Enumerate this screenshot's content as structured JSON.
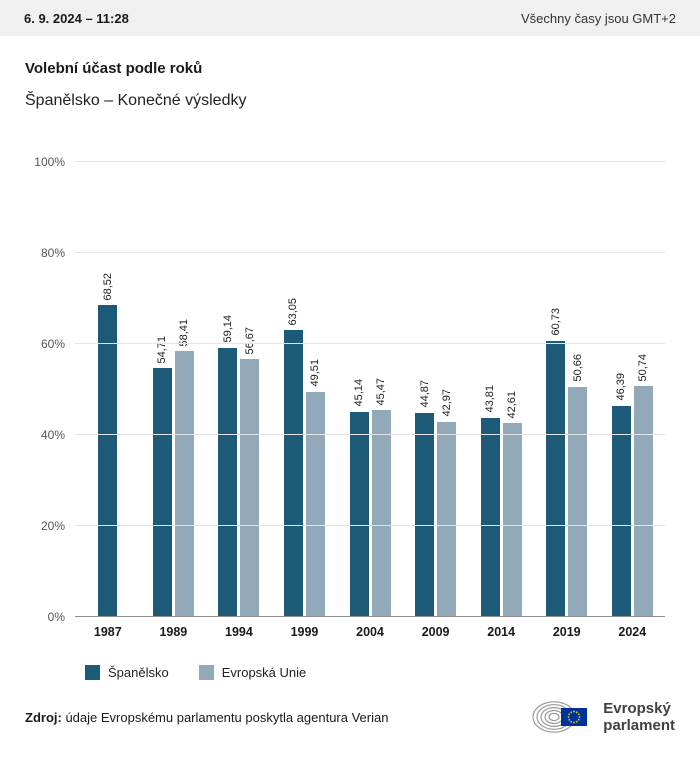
{
  "header": {
    "datetime": "6. 9. 2024 – 11:28",
    "timezone_note": "Všechny časy jsou GMT+2"
  },
  "title": "Volební účast podle roků",
  "subtitle": "Španělsko – Konečné výsledky",
  "chart_data": {
    "type": "bar",
    "categories": [
      "1987",
      "1989",
      "1994",
      "1999",
      "2004",
      "2009",
      "2014",
      "2019",
      "2024"
    ],
    "series": [
      {
        "name": "Španělsko",
        "color": "#1d5a77",
        "values": [
          68.52,
          54.71,
          59.14,
          63.05,
          45.14,
          44.87,
          43.81,
          60.73,
          46.39
        ],
        "labels": [
          "68,52",
          "54,71",
          "59,14",
          "63,05",
          "45,14",
          "44,87",
          "43,81",
          "60,73",
          "46,39"
        ]
      },
      {
        "name": "Evropská Unie",
        "color": "#92a9ba",
        "values": [
          null,
          58.41,
          56.67,
          49.51,
          45.47,
          42.97,
          42.61,
          50.66,
          50.74
        ],
        "labels": [
          "",
          "58,41",
          "56,67",
          "49,51",
          "45,47",
          "42,97",
          "42,61",
          "50,66",
          "50,74"
        ]
      }
    ],
    "ylim": [
      0,
      100
    ],
    "yticks": [
      0,
      20,
      40,
      60,
      80,
      100
    ],
    "ytick_labels": [
      "0%",
      "20%",
      "40%",
      "60%",
      "80%",
      "100%"
    ],
    "grid": true,
    "legend_position": "bottom",
    "title": "Volební účast podle roků",
    "xlabel": "",
    "ylabel": ""
  },
  "footer": {
    "source_label": "Zdroj:",
    "source_text": " údaje Evropskému parlamentu poskytla agentura Verian"
  },
  "logo": {
    "line1": "Evropský",
    "line2": "parlament",
    "flag_color": "#003399",
    "star_color": "#ffcc00"
  }
}
